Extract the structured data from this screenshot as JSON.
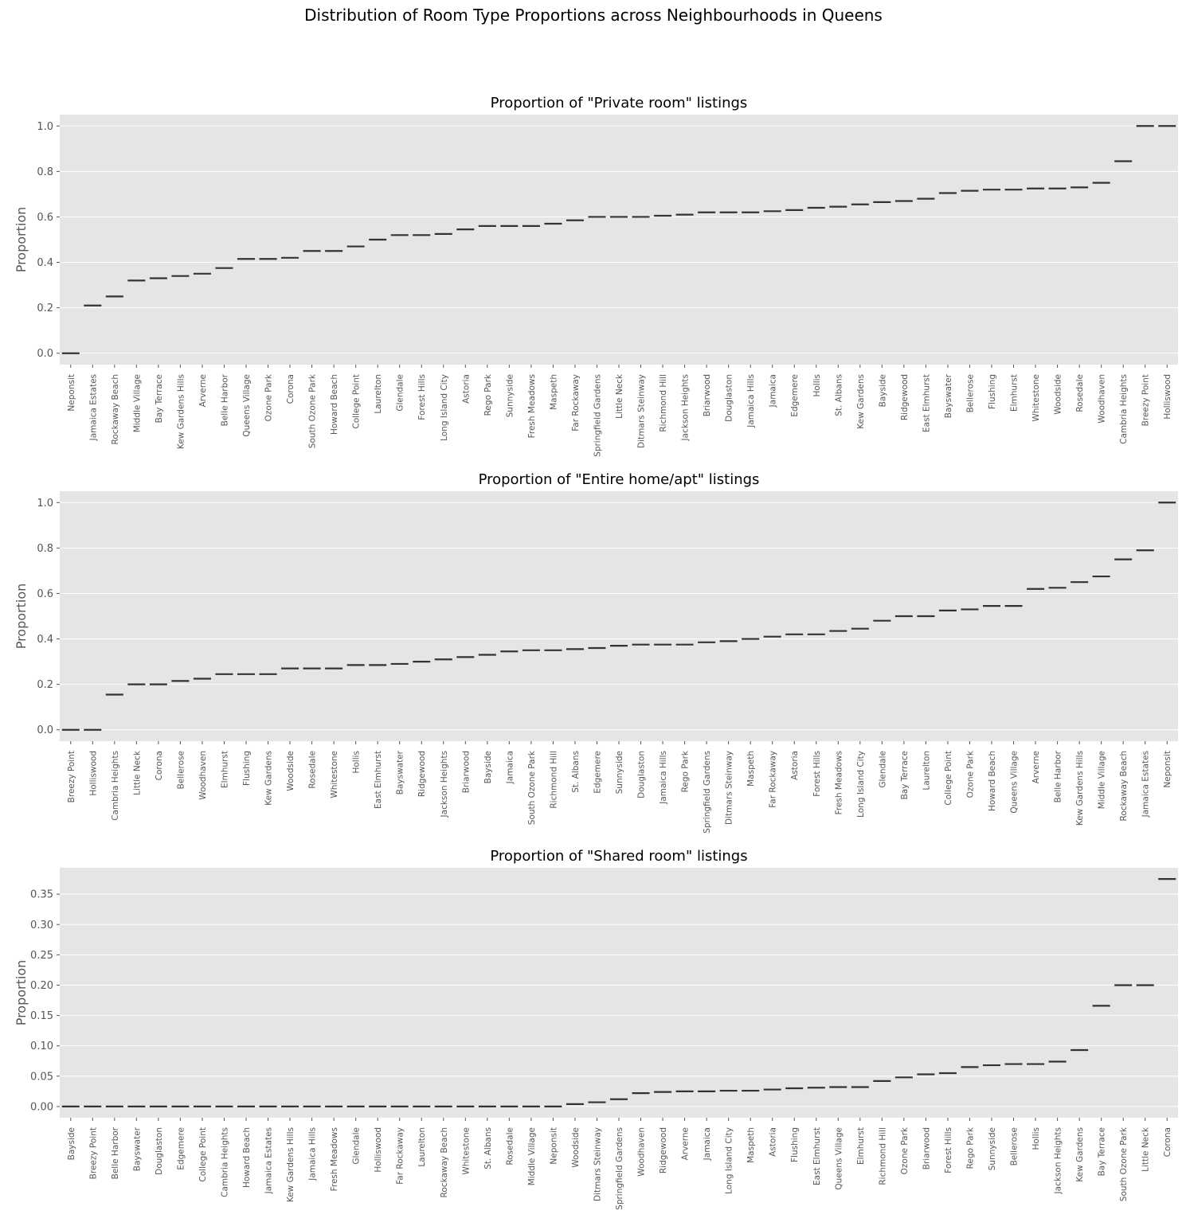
{
  "figure": {
    "title": "Distribution of Room Type Proportions across Neighbourhoods in Queens"
  },
  "colors": {
    "panel_bg": "#e5e5e5",
    "grid": "#ffffff",
    "tick_text": "#555555",
    "mark": "#333333"
  },
  "chart_data": [
    {
      "type": "box",
      "title": "Proportion of \"Private room\" listings",
      "xlabel": "",
      "ylabel": "Proportion",
      "ylim": [
        -0.05,
        1.05
      ],
      "yticks": [
        0.0,
        0.2,
        0.4,
        0.6,
        0.8,
        1.0
      ],
      "ytick_labels": [
        "0.0",
        "0.2",
        "0.4",
        "0.6",
        "0.8",
        "1.0"
      ],
      "grid": true,
      "categories": [
        "Neponsit",
        "Jamaica Estates",
        "Rockaway Beach",
        "Middle Village",
        "Bay Terrace",
        "Kew Gardens Hills",
        "Arverne",
        "Belle Harbor",
        "Queens Village",
        "Ozone Park",
        "Corona",
        "South Ozone Park",
        "Howard Beach",
        "College Point",
        "Laurelton",
        "Glendale",
        "Forest Hills",
        "Long Island City",
        "Astoria",
        "Rego Park",
        "Sunnyside",
        "Fresh Meadows",
        "Maspeth",
        "Far Rockaway",
        "Springfield Gardens",
        "Little Neck",
        "Ditmars Steinway",
        "Richmond Hill",
        "Jackson Heights",
        "Briarwood",
        "Douglaston",
        "Jamaica Hills",
        "Jamaica",
        "Edgemere",
        "Hollis",
        "St. Albans",
        "Kew Gardens",
        "Bayside",
        "Ridgewood",
        "East Elmhurst",
        "Bayswater",
        "Bellerose",
        "Flushing",
        "Elmhurst",
        "Whitestone",
        "Woodside",
        "Rosedale",
        "Woodhaven",
        "Cambria Heights",
        "Breezy Point",
        "Holliswood"
      ],
      "values": [
        0.0,
        0.21,
        0.25,
        0.32,
        0.33,
        0.34,
        0.35,
        0.375,
        0.415,
        0.415,
        0.42,
        0.45,
        0.45,
        0.47,
        0.5,
        0.52,
        0.52,
        0.525,
        0.545,
        0.56,
        0.56,
        0.56,
        0.57,
        0.585,
        0.6,
        0.6,
        0.6,
        0.605,
        0.61,
        0.62,
        0.62,
        0.62,
        0.625,
        0.63,
        0.64,
        0.645,
        0.655,
        0.665,
        0.67,
        0.68,
        0.705,
        0.715,
        0.72,
        0.72,
        0.725,
        0.725,
        0.73,
        0.75,
        0.845,
        1.0,
        1.0
      ]
    },
    {
      "type": "box",
      "title": "Proportion of \"Entire home/apt\" listings",
      "xlabel": "",
      "ylabel": "Proportion",
      "ylim": [
        -0.05,
        1.05
      ],
      "yticks": [
        0.0,
        0.2,
        0.4,
        0.6,
        0.8,
        1.0
      ],
      "ytick_labels": [
        "0.0",
        "0.2",
        "0.4",
        "0.6",
        "0.8",
        "1.0"
      ],
      "grid": true,
      "categories": [
        "Breezy Point",
        "Holliswood",
        "Cambria Heights",
        "Little Neck",
        "Corona",
        "Bellerose",
        "Woodhaven",
        "Elmhurst",
        "Flushing",
        "Kew Gardens",
        "Woodside",
        "Rosedale",
        "Whitestone",
        "Hollis",
        "East Elmhurst",
        "Bayswater",
        "Ridgewood",
        "Jackson Heights",
        "Briarwood",
        "Bayside",
        "Jamaica",
        "South Ozone Park",
        "Richmond Hill",
        "St. Albans",
        "Edgemere",
        "Sunnyside",
        "Douglaston",
        "Jamaica Hills",
        "Rego Park",
        "Springfield Gardens",
        "Ditmars Steinway",
        "Maspeth",
        "Far Rockaway",
        "Astoria",
        "Forest Hills",
        "Fresh Meadows",
        "Long Island City",
        "Glendale",
        "Bay Terrace",
        "Laurelton",
        "College Point",
        "Ozone Park",
        "Howard Beach",
        "Queens Village",
        "Arverne",
        "Belle Harbor",
        "Kew Gardens Hills",
        "Middle Village",
        "Rockaway Beach",
        "Jamaica Estates",
        "Neponsit"
      ],
      "values": [
        0.0,
        0.0,
        0.155,
        0.2,
        0.2,
        0.215,
        0.225,
        0.245,
        0.245,
        0.245,
        0.27,
        0.27,
        0.27,
        0.285,
        0.285,
        0.29,
        0.3,
        0.31,
        0.32,
        0.33,
        0.345,
        0.35,
        0.35,
        0.355,
        0.36,
        0.37,
        0.375,
        0.375,
        0.375,
        0.385,
        0.39,
        0.4,
        0.41,
        0.42,
        0.42,
        0.435,
        0.445,
        0.48,
        0.5,
        0.5,
        0.525,
        0.53,
        0.545,
        0.545,
        0.62,
        0.625,
        0.65,
        0.675,
        0.75,
        0.79,
        1.0
      ]
    },
    {
      "type": "box",
      "title": "Proportion of \"Shared room\" listings",
      "xlabel": "",
      "ylabel": "Proportion",
      "ylim": [
        -0.0185,
        0.3935
      ],
      "yticks": [
        0.0,
        0.05,
        0.1,
        0.15,
        0.2,
        0.25,
        0.3,
        0.35
      ],
      "ytick_labels": [
        "0.00",
        "0.05",
        "0.10",
        "0.15",
        "0.20",
        "0.25",
        "0.30",
        "0.35"
      ],
      "grid": true,
      "categories": [
        "Bayside",
        "Breezy Point",
        "Belle Harbor",
        "Bayswater",
        "Douglaston",
        "Edgemere",
        "College Point",
        "Cambria Heights",
        "Howard Beach",
        "Jamaica Estates",
        "Kew Gardens Hills",
        "Jamaica Hills",
        "Fresh Meadows",
        "Glendale",
        "Holliswood",
        "Far Rockaway",
        "Laurelton",
        "Rockaway Beach",
        "Whitestone",
        "St. Albans",
        "Rosedale",
        "Middle Village",
        "Neponsit",
        "Woodside",
        "Ditmars Steinway",
        "Springfield Gardens",
        "Woodhaven",
        "Ridgewood",
        "Arverne",
        "Jamaica",
        "Long Island City",
        "Maspeth",
        "Astoria",
        "Flushing",
        "East Elmhurst",
        "Queens Village",
        "Elmhurst",
        "Richmond Hill",
        "Ozone Park",
        "Briarwood",
        "Forest Hills",
        "Rego Park",
        "Sunnyside",
        "Bellerose",
        "Hollis",
        "Jackson Heights",
        "Kew Gardens",
        "Bay Terrace",
        "South Ozone Park",
        "Little Neck",
        "Corona"
      ],
      "values": [
        0,
        0,
        0,
        0,
        0,
        0,
        0,
        0,
        0,
        0,
        0,
        0,
        0,
        0,
        0,
        0,
        0,
        0,
        0,
        0,
        0,
        0,
        0,
        0.004,
        0.007,
        0.012,
        0.022,
        0.024,
        0.025,
        0.025,
        0.026,
        0.026,
        0.028,
        0.03,
        0.031,
        0.032,
        0.032,
        0.042,
        0.048,
        0.053,
        0.055,
        0.065,
        0.068,
        0.07,
        0.07,
        0.074,
        0.093,
        0.166,
        0.2,
        0.2,
        0.375
      ]
    }
  ]
}
